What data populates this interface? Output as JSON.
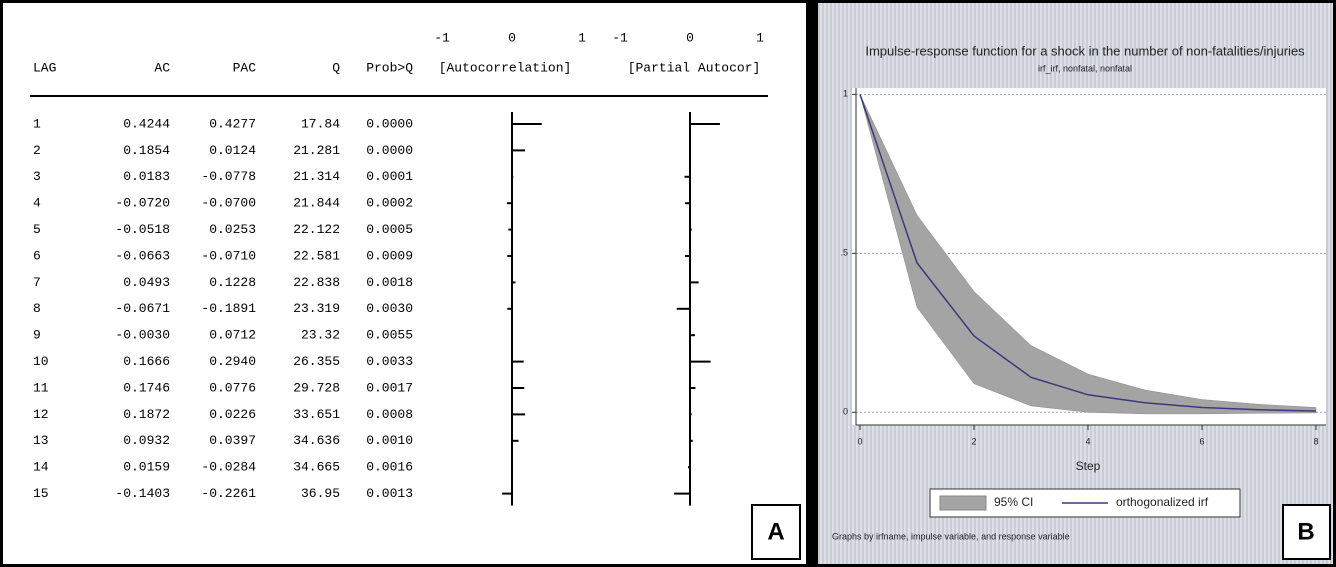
{
  "table": {
    "columns": [
      "LAG",
      "AC",
      "PAC",
      "Q",
      "Prob>Q",
      "[Autocorrelation]",
      "[Partial Autocor]"
    ],
    "ac_scale": [
      -1,
      0,
      1
    ],
    "pac_scale": [
      -1,
      0,
      1
    ],
    "rows": [
      [
        "1",
        "0.4244",
        "0.4277",
        "17.84",
        "0.0000"
      ],
      [
        "2",
        "0.1854",
        "0.0124",
        "21.281",
        "0.0000"
      ],
      [
        "3",
        "0.0183",
        "-0.0778",
        "21.314",
        "0.0001"
      ],
      [
        "4",
        "-0.0720",
        "-0.0700",
        "21.844",
        "0.0002"
      ],
      [
        "5",
        "-0.0518",
        "0.0253",
        "22.122",
        "0.0005"
      ],
      [
        "6",
        "-0.0663",
        "-0.0710",
        "22.581",
        "0.0009"
      ],
      [
        "7",
        "0.0493",
        "0.1228",
        "22.838",
        "0.0018"
      ],
      [
        "8",
        "-0.0671",
        "-0.1891",
        "23.319",
        "0.0030"
      ],
      [
        "9",
        "-0.0030",
        "0.0712",
        "23.32",
        "0.0055"
      ],
      [
        "10",
        "0.1666",
        "0.2940",
        "26.355",
        "0.0033"
      ],
      [
        "11",
        "0.1746",
        "0.0776",
        "29.728",
        "0.0017"
      ],
      [
        "12",
        "0.1872",
        "0.0226",
        "33.651",
        "0.0008"
      ],
      [
        "13",
        "0.0932",
        "0.0397",
        "34.636",
        "0.0010"
      ],
      [
        "14",
        "0.0159",
        "-0.0284",
        "34.665",
        "0.0016"
      ],
      [
        "15",
        "-0.1403",
        "-0.2261",
        "36.95",
        "0.0013"
      ]
    ]
  },
  "chart_data": {
    "type": "line",
    "title": "Impulse-response function for a shock in the number of non-fatalities/injuries",
    "subtitle": "irf_irf, nonfatal, nonfatal",
    "x_label": "Step",
    "note": "Graphs by irfname, impulse variable, and response variable",
    "x": [
      0,
      1,
      2,
      3,
      4,
      5,
      6,
      7,
      8
    ],
    "xlim": [
      0,
      8
    ],
    "xticks": [
      0,
      2,
      4,
      6,
      8
    ],
    "ylim": [
      -0.04,
      1.02
    ],
    "yticks": [
      0,
      {
        "value": 0.5,
        "label": ".5"
      },
      1
    ],
    "grid": true,
    "series": [
      {
        "name": "95% CI",
        "color": "#a4a4a4",
        "lower": [
          1,
          0.33,
          0.09,
          0.02,
          0.0,
          -0.005,
          -0.005,
          -0.003,
          -0.002
        ],
        "upper": [
          1,
          0.62,
          0.38,
          0.21,
          0.12,
          0.07,
          0.04,
          0.025,
          0.015
        ]
      },
      {
        "name": "orthogonalized irf",
        "color": "#3a3a7a",
        "values": [
          1,
          0.47,
          0.24,
          0.11,
          0.055,
          0.03,
          0.015,
          0.008,
          0.004
        ]
      }
    ]
  },
  "panel_labels": [
    "A",
    "B"
  ]
}
